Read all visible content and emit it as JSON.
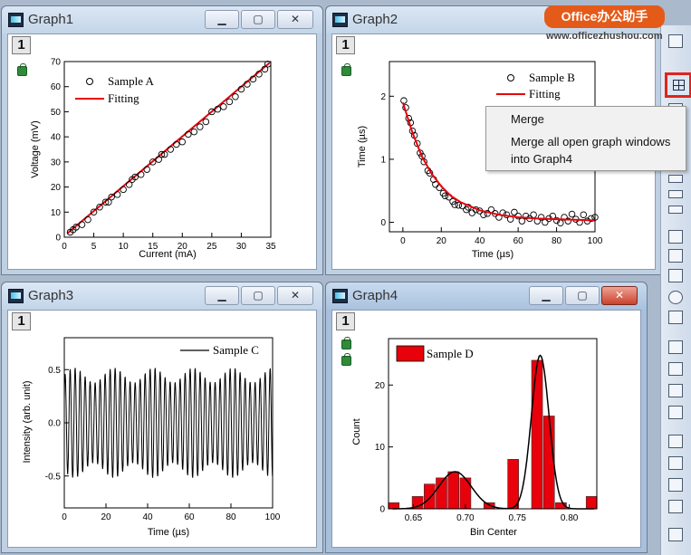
{
  "watermark": {
    "brand": "Office办公助手",
    "url": "www.officezhushou.com"
  },
  "windows": {
    "graph1": {
      "title": "Graph1",
      "layer": "1"
    },
    "graph2": {
      "title": "Graph2",
      "layer": "1"
    },
    "graph3": {
      "title": "Graph3",
      "layer": "1"
    },
    "graph4": {
      "title": "Graph4",
      "layer": "1"
    }
  },
  "context_menu": {
    "items": [
      "Merge",
      "Merge all open graph windows",
      "into Graph4"
    ]
  },
  "toolbar": {
    "selected_tool_icon": "merge-graphs-icon",
    "highlight_color": "#e0241b"
  },
  "icons": {
    "minimize": "minimize-icon",
    "maximize": "maximize-icon",
    "close": "close-icon",
    "lock": "lock-icon"
  },
  "chart_data": [
    {
      "type": "scatter",
      "xlabel": "Current (mA)",
      "ylabel": "Voltage (mV)",
      "xlim": [
        0,
        35
      ],
      "ylim": [
        0,
        70
      ],
      "xticks": [
        0,
        5,
        10,
        15,
        20,
        25,
        30,
        35
      ],
      "yticks": [
        0,
        10,
        20,
        30,
        40,
        50,
        60,
        70
      ],
      "legend_position": "top-left",
      "series": [
        {
          "name": "Sample A",
          "style": "open-circle",
          "x": [
            1,
            1.5,
            2,
            3,
            4,
            5,
            6,
            7,
            7.5,
            8,
            9,
            10,
            11,
            11.5,
            12,
            13,
            14,
            15,
            16,
            16.5,
            17,
            18,
            19,
            20,
            21,
            22,
            23,
            24,
            25,
            26,
            27,
            28,
            29,
            30,
            31,
            32,
            33,
            34,
            34.5
          ],
          "y": [
            2,
            3,
            4,
            5,
            7,
            10,
            12,
            14,
            14,
            16,
            17,
            19,
            21,
            23,
            24,
            25,
            27,
            30,
            31,
            33,
            33,
            35,
            37,
            38,
            41,
            42,
            44,
            46,
            50,
            51,
            52,
            54,
            56,
            59,
            61,
            63,
            65,
            67,
            69
          ]
        },
        {
          "name": "Fitting",
          "style": "line",
          "color": "#e8000b",
          "x": [
            0.5,
            34.8
          ],
          "y": [
            1.5,
            69.5
          ]
        }
      ]
    },
    {
      "type": "scatter",
      "xlabel": "Time (µs)",
      "ylabel": "Time (µs)",
      "xlim": [
        -7,
        100
      ],
      "ylim": [
        -0.15,
        2.55
      ],
      "xticks": [
        0,
        20,
        40,
        60,
        80,
        100
      ],
      "yticks": [
        0,
        1,
        2
      ],
      "legend_position": "top-right",
      "series": [
        {
          "name": "Sample B",
          "style": "open-circle",
          "x": [
            0.5,
            1.5,
            3,
            4,
            5,
            6,
            7.5,
            9,
            10,
            11,
            13,
            14,
            16,
            17,
            19,
            21,
            22,
            24,
            26,
            27,
            29,
            31,
            33,
            34,
            36,
            38,
            40,
            42,
            44,
            46,
            48,
            50,
            52,
            54,
            56,
            58,
            60,
            62,
            64,
            66,
            68,
            70,
            72,
            74,
            76,
            78,
            80,
            82,
            84,
            86,
            88,
            90,
            92,
            94,
            96,
            98,
            100
          ],
          "y": [
            1.93,
            1.82,
            1.65,
            1.58,
            1.45,
            1.38,
            1.25,
            1.1,
            1.05,
            0.96,
            0.82,
            0.78,
            0.68,
            0.6,
            0.55,
            0.46,
            0.42,
            0.4,
            0.33,
            0.28,
            0.27,
            0.26,
            0.2,
            0.24,
            0.15,
            0.2,
            0.18,
            0.12,
            0.14,
            0.2,
            0.14,
            0.08,
            0.15,
            0.12,
            0.05,
            0.16,
            0.1,
            0.02,
            0.1,
            0.06,
            0.12,
            0.02,
            0.08,
            0.0,
            0.06,
            0.1,
            0.03,
            -0.01,
            0.08,
            0.02,
            0.13,
            0.05,
            0.0,
            0.12,
            0.02,
            0.06,
            0.08
          ]
        },
        {
          "name": "Fitting",
          "style": "line",
          "color": "#e8000b",
          "model": "exponential decay",
          "x": [
            0,
            5,
            10,
            15,
            20,
            25,
            30,
            40,
            50,
            60,
            70,
            80,
            90,
            100
          ],
          "y": [
            1.9,
            1.42,
            1.04,
            0.77,
            0.57,
            0.42,
            0.32,
            0.19,
            0.12,
            0.08,
            0.06,
            0.05,
            0.04,
            0.03
          ]
        }
      ]
    },
    {
      "type": "line",
      "xlabel": "Time (µs)",
      "ylabel": "Intensity (arb. unit)",
      "xlim": [
        0,
        100
      ],
      "ylim": [
        -0.8,
        0.8
      ],
      "xticks": [
        0,
        20,
        40,
        60,
        80,
        100
      ],
      "yticks": [
        -0.5,
        0.0,
        0.5
      ],
      "legend_position": "top-right",
      "series": [
        {
          "name": "Sample C",
          "style": "line",
          "color": "#000000",
          "model": "oscillation",
          "period": 2.4,
          "amplitude_range": [
            0.38,
            0.52
          ]
        }
      ]
    },
    {
      "type": "bar",
      "xlabel": "Bin Center",
      "ylabel": "Count",
      "xlim": [
        0.626,
        0.8265
      ],
      "ylim": [
        0,
        27.5
      ],
      "xticks": [
        0.65,
        0.7,
        0.75,
        0.8
      ],
      "yticks": [
        0,
        10,
        20
      ],
      "legend_position": "top-left",
      "series": [
        {
          "name": "Sample D",
          "color": "#e8000b",
          "bin_width": 0.0105,
          "x": [
            0.631,
            0.6425,
            0.654,
            0.6655,
            0.677,
            0.6885,
            0.7,
            0.7115,
            0.723,
            0.7345,
            0.746,
            0.7575,
            0.769,
            0.7805,
            0.792,
            0.8035,
            0.8215
          ],
          "values": [
            1,
            0,
            2,
            4,
            5,
            6,
            5,
            0,
            1,
            0,
            8,
            0,
            24,
            15,
            1,
            0,
            2
          ]
        },
        {
          "name": "",
          "style": "line",
          "color": "#000000",
          "model": "two-gaussian fit",
          "peaks": [
            {
              "center": 0.69,
              "height": 6
            },
            {
              "center": 0.772,
              "height": 24.8
            }
          ]
        }
      ]
    }
  ]
}
